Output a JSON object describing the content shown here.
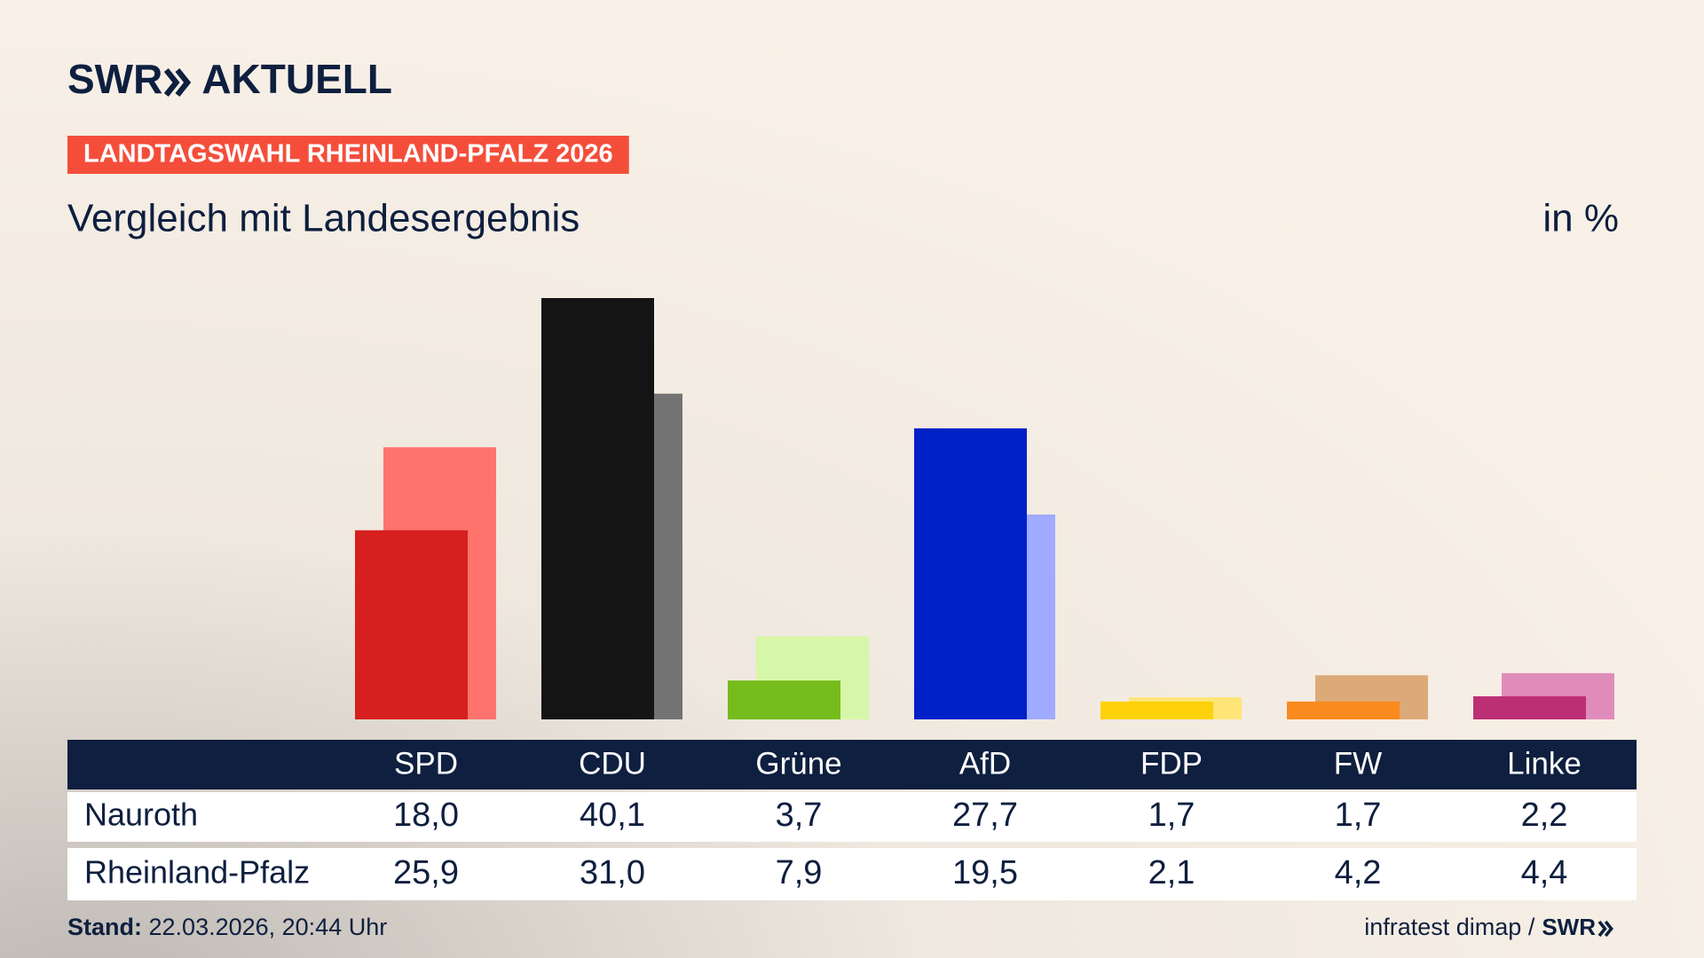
{
  "chart_data": {
    "type": "bar",
    "brand": "SWR",
    "brand_suffix": "AKTUELL",
    "kicker": "LANDTAGSWAHL RHEINLAND-PFALZ 2026",
    "title": "Vergleich mit Landesergebnis",
    "unit": "in %",
    "categories": [
      "SPD",
      "CDU",
      "Grüne",
      "AfD",
      "FDP",
      "FW",
      "Linke"
    ],
    "series": [
      {
        "name": "Nauroth",
        "color": [
          "#d61f1f",
          "#141414",
          "#76bc1d",
          "#0020c8",
          "#fdd20a",
          "#fa8a1e",
          "#bd2f74"
        ],
        "values": [
          18.0,
          40.1,
          3.7,
          27.7,
          1.7,
          1.7,
          2.2
        ],
        "value_labels": [
          "18,0",
          "40,1",
          "3,7",
          "27,7",
          "1,7",
          "1,7",
          "2,2"
        ]
      },
      {
        "name": "Rheinland-Pfalz",
        "color": [
          "#ff736d",
          "#737373",
          "#d6f7a8",
          "#a0abff",
          "#ffe577",
          "#dcaa78",
          "#e08cbb"
        ],
        "values": [
          25.9,
          31.0,
          7.9,
          19.5,
          2.1,
          4.2,
          4.4
        ],
        "value_labels": [
          "25,9",
          "31,0",
          "7,9",
          "19,5",
          "2,1",
          "4,2",
          "4,4"
        ]
      }
    ],
    "footer_label": "Stand:",
    "footer_date": "22.03.2026, 20:44 Uhr",
    "source": "infratest dimap /",
    "source_brand": "SWR"
  }
}
